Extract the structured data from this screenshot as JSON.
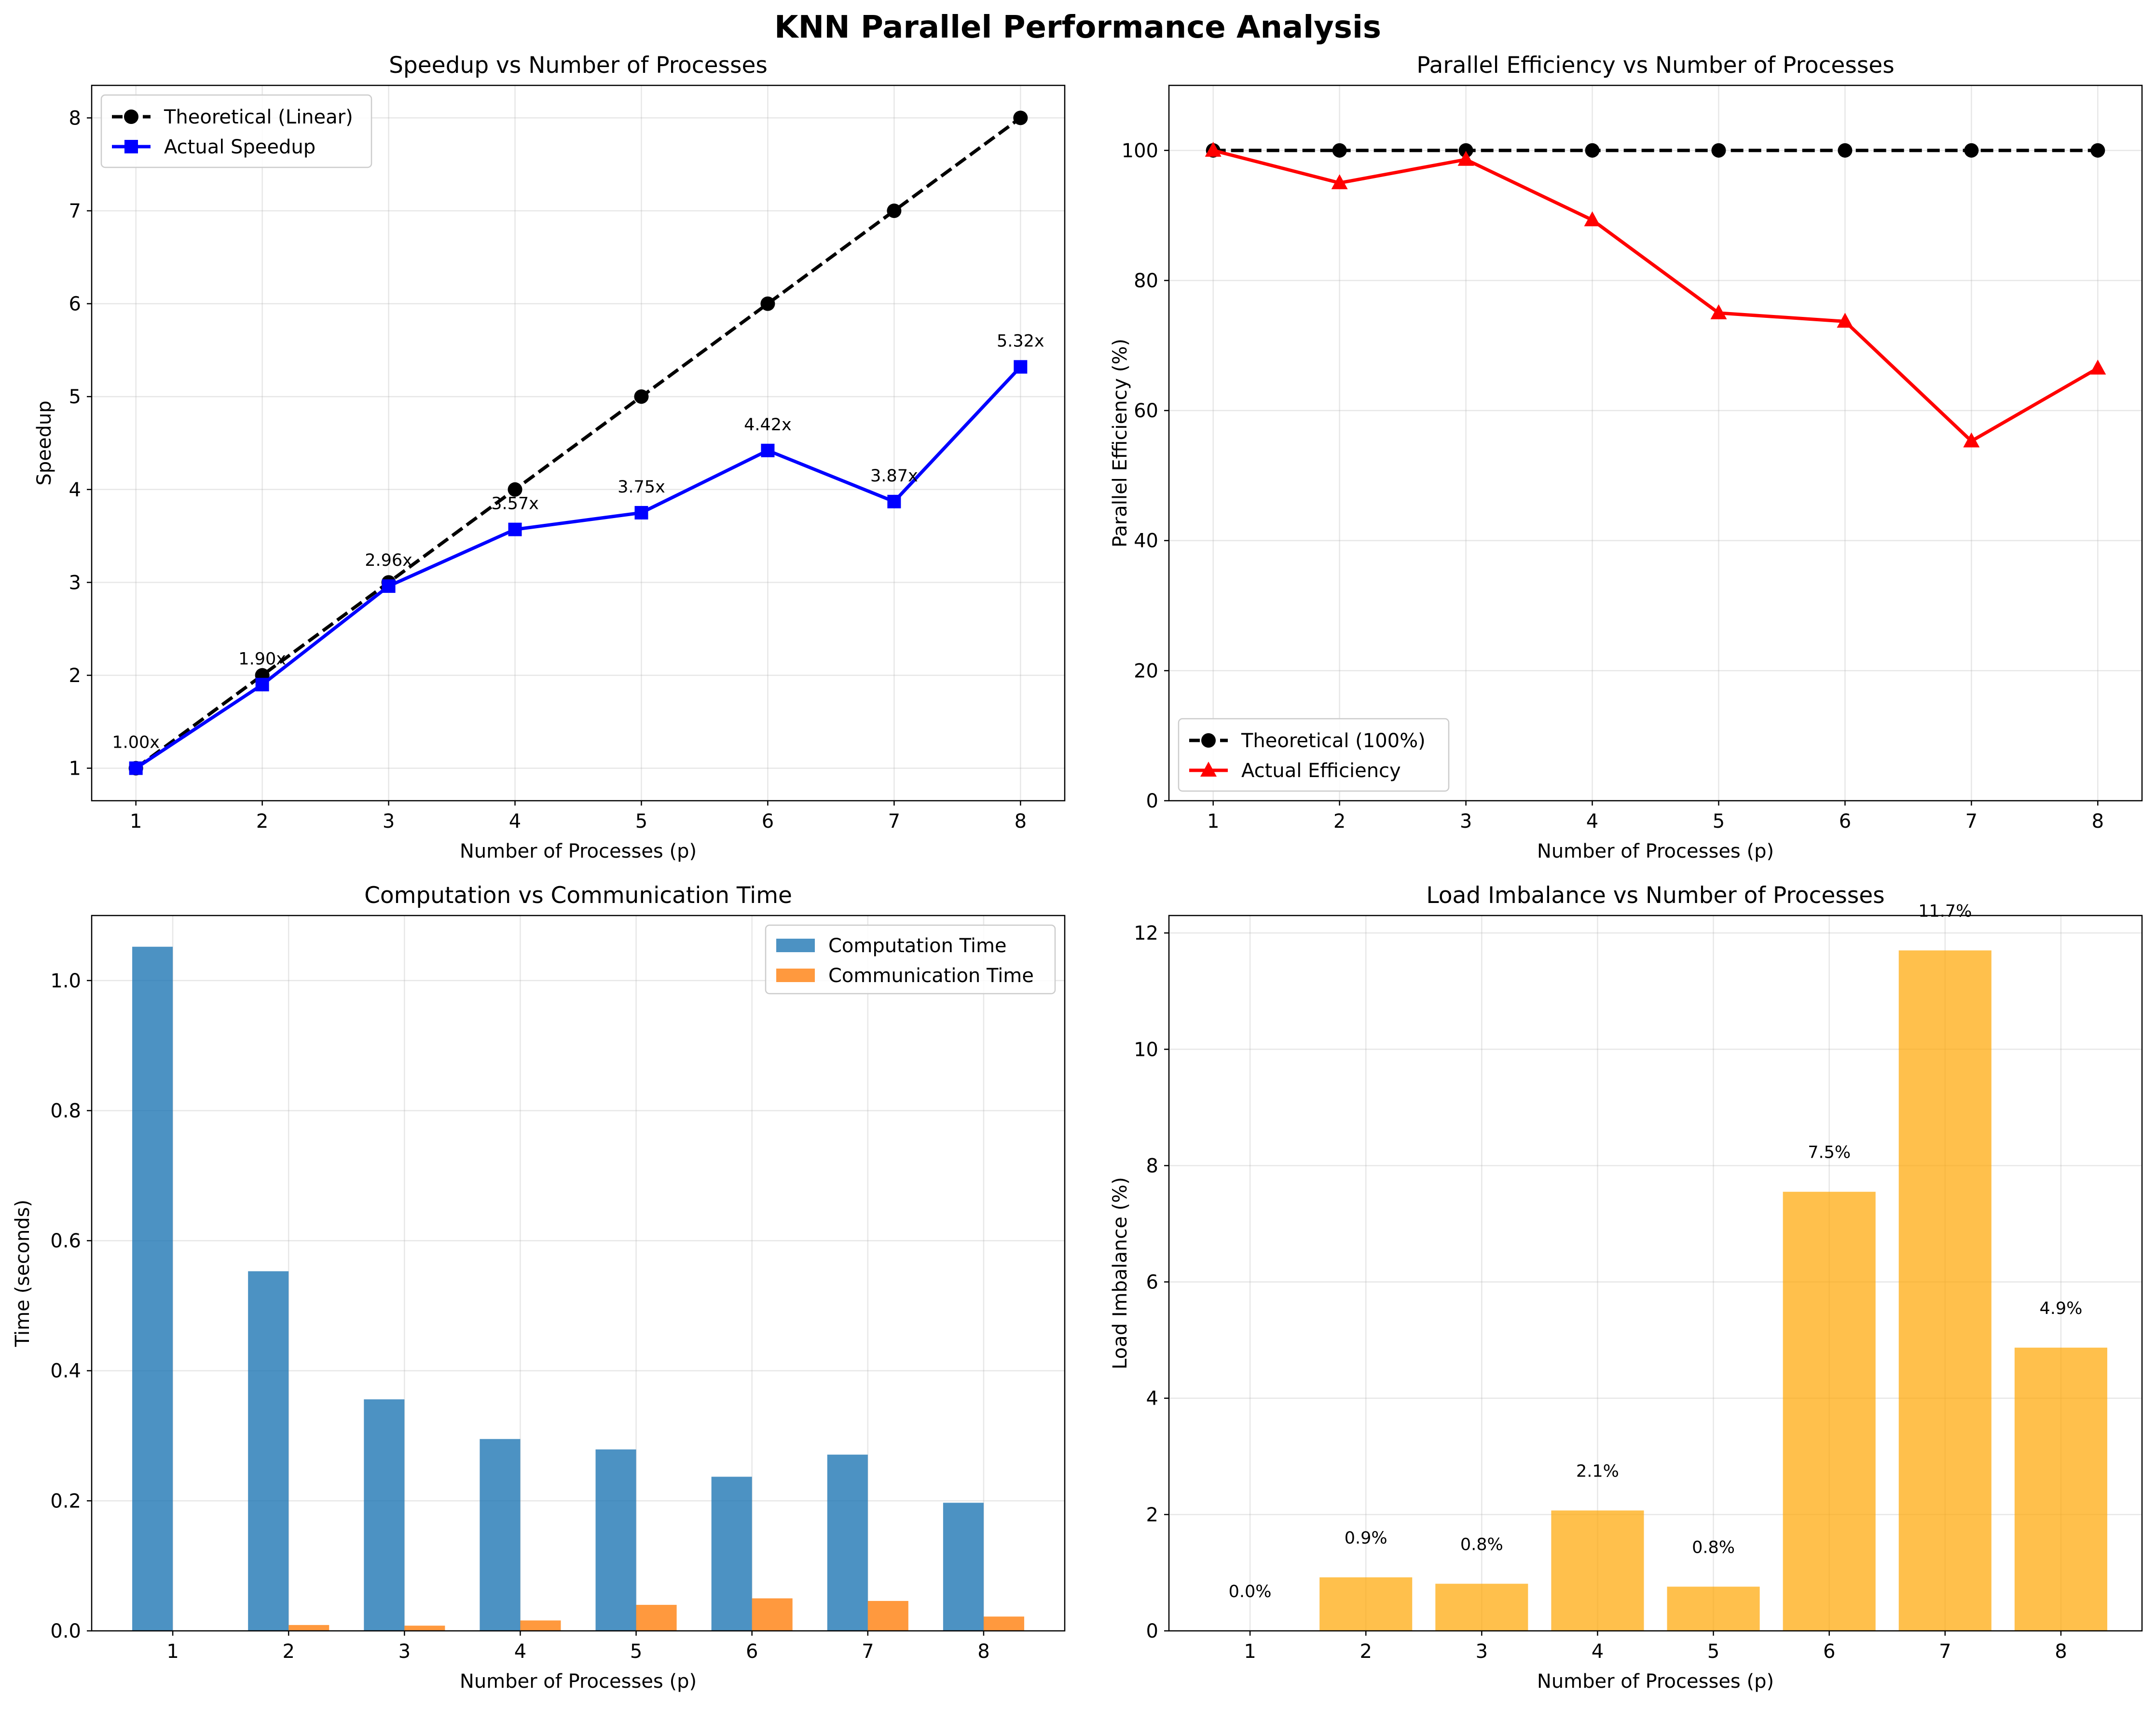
{
  "suptitle": "KNN Parallel Performance Analysis",
  "colors": {
    "theoretical": "#000000",
    "speedup": "#0000ff",
    "efficiency": "#ff0000",
    "computation": "#1f77b4",
    "communication": "#ff7f0e",
    "imbalance": "#ffa500",
    "grid": "#b0b0b0"
  },
  "chart_data": [
    {
      "type": "line",
      "title": "Speedup vs Number of Processes",
      "xlabel": "Number of Processes (p)",
      "ylabel": "Speedup",
      "x": [
        1,
        2,
        3,
        4,
        5,
        6,
        7,
        8
      ],
      "xlim": [
        0.65,
        8.35
      ],
      "ylim": [
        0.65,
        8.35
      ],
      "yticks": [
        1,
        2,
        3,
        4,
        5,
        6,
        7,
        8
      ],
      "grid": true,
      "legend_position": "upper left",
      "series": [
        {
          "name": "Theoretical (Linear)",
          "values": [
            1,
            2,
            3,
            4,
            5,
            6,
            7,
            8
          ],
          "style": "dashed",
          "marker": "circle"
        },
        {
          "name": "Actual Speedup",
          "values": [
            1.0,
            1.9,
            2.96,
            3.57,
            3.75,
            4.42,
            3.87,
            5.32
          ],
          "style": "solid",
          "marker": "square"
        }
      ],
      "data_labels": [
        "1.00x",
        "1.90x",
        "2.96x",
        "3.57x",
        "3.75x",
        "4.42x",
        "3.87x",
        "5.32x"
      ]
    },
    {
      "type": "line",
      "title": "Parallel Efficiency vs Number of Processes",
      "xlabel": "Number of Processes (p)",
      "ylabel": "Parallel Efficiency (%)",
      "x": [
        1,
        2,
        3,
        4,
        5,
        6,
        7,
        8
      ],
      "xlim": [
        0.65,
        8.35
      ],
      "ylim": [
        0,
        110
      ],
      "yticks": [
        0,
        20,
        40,
        60,
        80,
        100
      ],
      "grid": true,
      "legend_position": "lower left",
      "series": [
        {
          "name": "Theoretical (100%)",
          "values": [
            100,
            100,
            100,
            100,
            100,
            100,
            100,
            100
          ],
          "style": "dashed",
          "marker": "circle"
        },
        {
          "name": "Actual Efficiency",
          "values": [
            100.0,
            95.0,
            98.6,
            89.3,
            75.0,
            73.7,
            55.3,
            66.5
          ],
          "style": "solid",
          "marker": "triangle"
        }
      ]
    },
    {
      "type": "bar",
      "title": "Computation vs Communication Time",
      "xlabel": "Number of Processes (p)",
      "ylabel": "Time (seconds)",
      "categories": [
        "1",
        "2",
        "3",
        "4",
        "5",
        "6",
        "7",
        "8"
      ],
      "xlim": [
        0.3,
        8.7
      ],
      "ylim": [
        0,
        1.1
      ],
      "yticks": [
        0.0,
        0.2,
        0.4,
        0.6,
        0.8,
        1.0
      ],
      "grid": true,
      "legend_position": "upper right",
      "series": [
        {
          "name": "Computation Time",
          "values": [
            1.052,
            0.553,
            0.356,
            0.295,
            0.279,
            0.237,
            0.271,
            0.197
          ]
        },
        {
          "name": "Communication Time",
          "values": [
            0.0,
            0.009,
            0.008,
            0.016,
            0.04,
            0.05,
            0.046,
            0.022
          ]
        }
      ]
    },
    {
      "type": "bar",
      "title": "Load Imbalance vs Number of Processes",
      "xlabel": "Number of Processes (p)",
      "ylabel": "Load Imbalance (%)",
      "categories": [
        "1",
        "2",
        "3",
        "4",
        "5",
        "6",
        "7",
        "8"
      ],
      "xlim": [
        0.3,
        8.7
      ],
      "ylim": [
        0,
        12.3
      ],
      "yticks": [
        0,
        2,
        4,
        6,
        8,
        10,
        12
      ],
      "grid": true,
      "series": [
        {
          "values": [
            0.0,
            0.92,
            0.81,
            2.07,
            0.76,
            7.55,
            11.7,
            4.87
          ]
        }
      ],
      "data_labels": [
        "0.0%",
        "0.9%",
        "0.8%",
        "2.1%",
        "0.8%",
        "7.5%",
        "11.7%",
        "4.9%"
      ]
    }
  ]
}
